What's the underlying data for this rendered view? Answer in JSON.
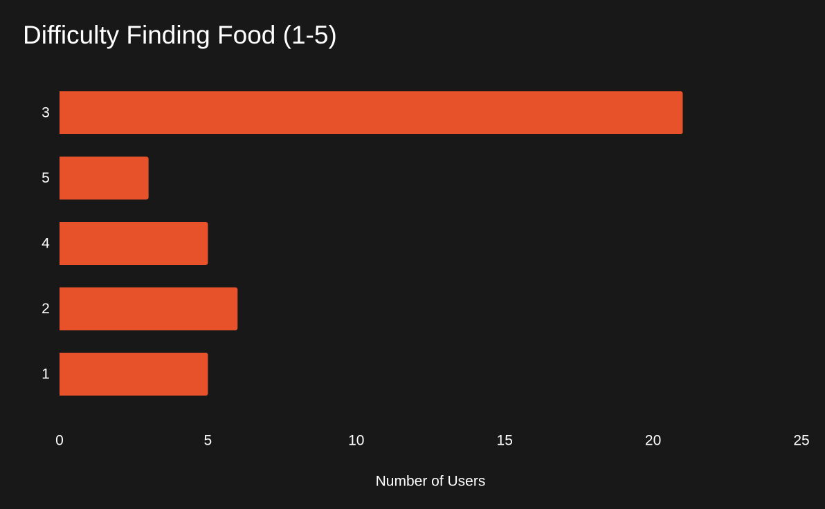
{
  "chart_data": {
    "type": "bar",
    "orientation": "horizontal",
    "title": "Difficulty Finding Food (1-5)",
    "xlabel": "Number of Users",
    "ylabel": "",
    "categories": [
      "3",
      "5",
      "4",
      "2",
      "1"
    ],
    "values": [
      21,
      3,
      5,
      6,
      5
    ],
    "xlim": [
      0,
      25
    ],
    "xticks": [
      "0",
      "5",
      "10",
      "15",
      "20",
      "25"
    ],
    "grid": false,
    "legend": "none",
    "bar_color": "#E8522A",
    "background_color": "#181818",
    "text_color": "#FFFFFF"
  }
}
